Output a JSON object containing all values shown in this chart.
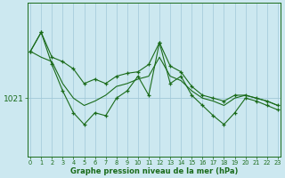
{
  "xlabel": "Graphe pression niveau de la mer (hPa)",
  "background_color": "#cce8f0",
  "line_color": "#1a6b1a",
  "grid_color": "#a0c8d8",
  "x_values": [
    0,
    1,
    2,
    3,
    4,
    5,
    6,
    7,
    8,
    9,
    10,
    11,
    12,
    13,
    14,
    15,
    16,
    17,
    18,
    19,
    20,
    21,
    22,
    23
  ],
  "series1": [
    1024.2,
    1025.5,
    1023.8,
    1023.5,
    1023.0,
    1022.0,
    1022.3,
    1022.0,
    1022.5,
    1022.7,
    1022.8,
    1023.3,
    1024.8,
    1023.2,
    1022.8,
    1021.8,
    1021.2,
    1021.0,
    1020.8,
    1021.2,
    1021.2,
    1021.0,
    1020.8,
    1020.5
  ],
  "series2": [
    1024.2,
    1023.8,
    1023.5,
    1022.0,
    1021.0,
    1020.5,
    1020.8,
    1021.2,
    1021.8,
    1022.0,
    1022.3,
    1022.5,
    1023.8,
    1022.5,
    1022.2,
    1021.5,
    1021.0,
    1020.8,
    1020.5,
    1021.0,
    1021.2,
    1021.0,
    1020.8,
    1020.5
  ],
  "series3": [
    1024.2,
    1025.5,
    1023.3,
    1021.5,
    1020.0,
    1019.2,
    1020.0,
    1019.8,
    1021.0,
    1021.5,
    1022.5,
    1021.2,
    1024.8,
    1022.0,
    1022.5,
    1021.2,
    1020.5,
    1019.8,
    1019.2,
    1020.0,
    1021.0,
    1020.8,
    1020.5,
    1020.2
  ],
  "ytick_value": 1021,
  "ylim_min": 1017.0,
  "ylim_max": 1027.5,
  "xlim_min": -0.3,
  "xlim_max": 23.3,
  "figwidth": 3.2,
  "figheight": 2.0,
  "dpi": 100
}
